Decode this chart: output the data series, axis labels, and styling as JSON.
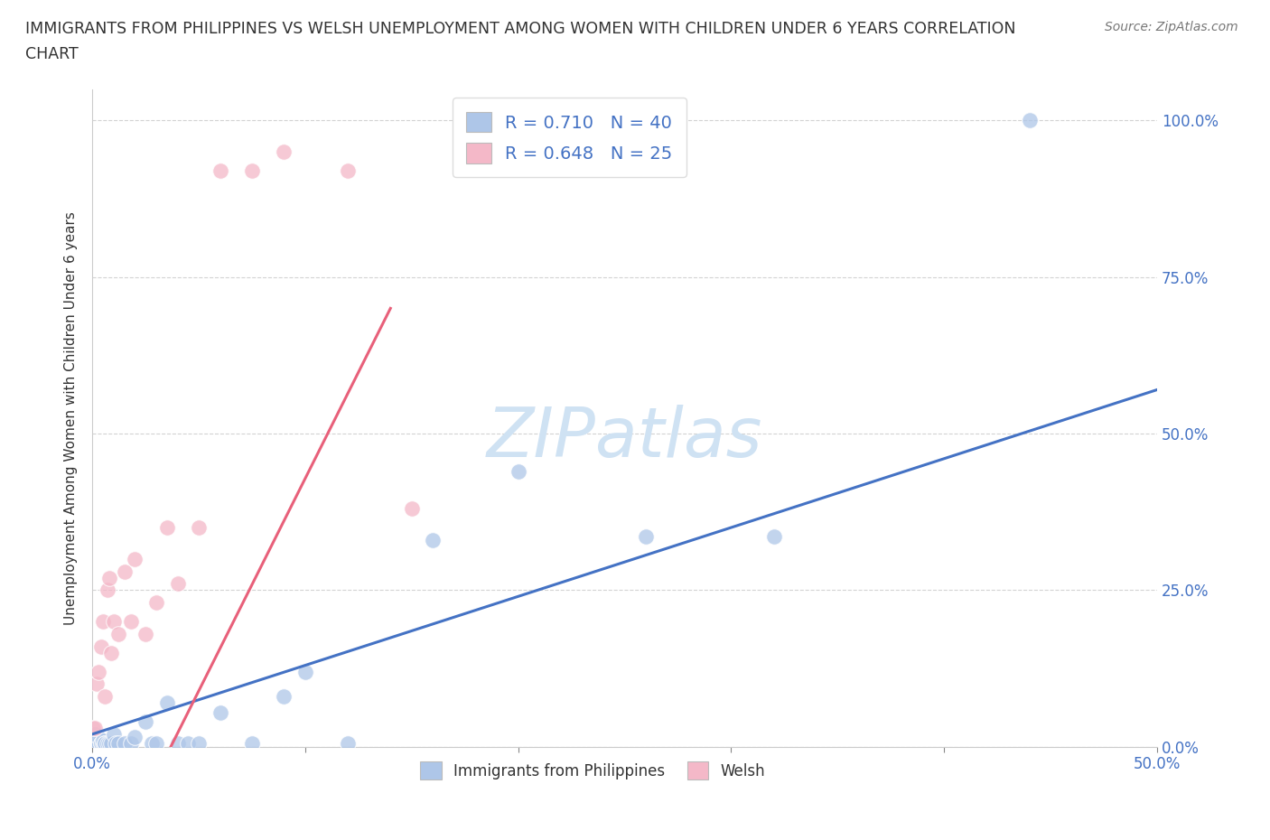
{
  "title_line1": "IMMIGRANTS FROM PHILIPPINES VS WELSH UNEMPLOYMENT AMONG WOMEN WITH CHILDREN UNDER 6 YEARS CORRELATION",
  "title_line2": "CHART",
  "source": "Source: ZipAtlas.com",
  "ylabel": "Unemployment Among Women with Children Under 6 years",
  "blue_color": "#aec6e8",
  "pink_color": "#f4b8c8",
  "blue_line_color": "#4472c4",
  "pink_line_color": "#e8607a",
  "grid_color": "#c8c8c8",
  "watermark_color": "#cfe2f3",
  "legend_R1": "R = 0.710",
  "legend_N1": "N = 40",
  "legend_R2": "R = 0.648",
  "legend_N2": "N = 25",
  "blue_scatter_x": [
    0.0005,
    0.001,
    0.001,
    0.0015,
    0.002,
    0.002,
    0.003,
    0.003,
    0.004,
    0.004,
    0.005,
    0.005,
    0.006,
    0.006,
    0.007,
    0.008,
    0.009,
    0.01,
    0.011,
    0.012,
    0.015,
    0.018,
    0.02,
    0.025,
    0.028,
    0.03,
    0.035,
    0.04,
    0.045,
    0.05,
    0.06,
    0.075,
    0.09,
    0.1,
    0.12,
    0.16,
    0.2,
    0.26,
    0.32,
    0.44
  ],
  "blue_scatter_y": [
    0.005,
    0.005,
    0.02,
    0.005,
    0.005,
    0.01,
    0.005,
    0.015,
    0.005,
    0.005,
    0.005,
    0.01,
    0.005,
    0.005,
    0.005,
    0.005,
    0.005,
    0.02,
    0.005,
    0.005,
    0.005,
    0.005,
    0.015,
    0.04,
    0.005,
    0.005,
    0.07,
    0.005,
    0.005,
    0.005,
    0.055,
    0.005,
    0.08,
    0.12,
    0.005,
    0.33,
    0.44,
    0.335,
    0.335,
    1.0
  ],
  "pink_scatter_x": [
    0.0005,
    0.001,
    0.002,
    0.003,
    0.004,
    0.005,
    0.006,
    0.007,
    0.008,
    0.009,
    0.01,
    0.012,
    0.015,
    0.018,
    0.02,
    0.025,
    0.03,
    0.035,
    0.04,
    0.05,
    0.06,
    0.075,
    0.09,
    0.12,
    0.15
  ],
  "pink_scatter_y": [
    0.03,
    0.03,
    0.1,
    0.12,
    0.16,
    0.2,
    0.08,
    0.25,
    0.27,
    0.15,
    0.2,
    0.18,
    0.28,
    0.2,
    0.3,
    0.18,
    0.23,
    0.35,
    0.26,
    0.35,
    0.92,
    0.92,
    0.95,
    0.92,
    0.38
  ],
  "xlim": [
    0.0,
    0.5
  ],
  "ylim": [
    0.0,
    1.05
  ],
  "ytick_positions": [
    0.0,
    0.25,
    0.5,
    0.75,
    1.0
  ],
  "ytick_labels": [
    "0.0%",
    "25.0%",
    "50.0%",
    "75.0%",
    "100.0%"
  ],
  "xtick_positions": [
    0.0,
    0.1,
    0.2,
    0.3,
    0.4,
    0.5
  ],
  "xtick_labels": [
    "0.0%",
    "",
    "",
    "",
    "",
    "50.0%"
  ]
}
